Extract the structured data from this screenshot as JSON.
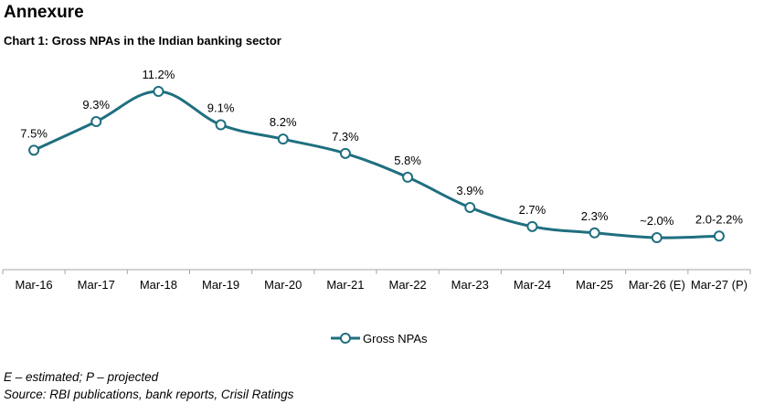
{
  "page": {
    "heading": "Annexure",
    "chart_title": "Chart 1: Gross NPAs in the Indian banking sector",
    "footnote": "E – estimated; P – projected",
    "source": "Source: RBI publications, bank reports, Crisil Ratings"
  },
  "chart_data": {
    "type": "line",
    "title": "Chart 1: Gross NPAs in the Indian banking sector",
    "xlabel": "",
    "ylabel": "",
    "categories": [
      "Mar-16",
      "Mar-17",
      "Mar-18",
      "Mar-19",
      "Mar-20",
      "Mar-21",
      "Mar-22",
      "Mar-23",
      "Mar-24",
      "Mar-25",
      "Mar-26 (E)",
      "Mar-27 (P)"
    ],
    "series": [
      {
        "name": "Gross NPAs",
        "values": [
          7.5,
          9.3,
          11.2,
          9.1,
          8.2,
          7.3,
          5.8,
          3.9,
          2.7,
          2.3,
          2.0,
          2.1
        ],
        "labels": [
          "7.5%",
          "9.3%",
          "11.2%",
          "9.1%",
          "8.2%",
          "7.3%",
          "5.8%",
          "3.9%",
          "2.7%",
          "2.3%",
          "~2.0%",
          "2.0-2.2%"
        ]
      }
    ],
    "ylim": [
      0,
      12.2
    ],
    "grid": false,
    "legend_position": "bottom-center",
    "colors": {
      "line": "#1f6f7f",
      "marker_fill": "#ffffff",
      "axis": "#a6a6a6"
    }
  }
}
